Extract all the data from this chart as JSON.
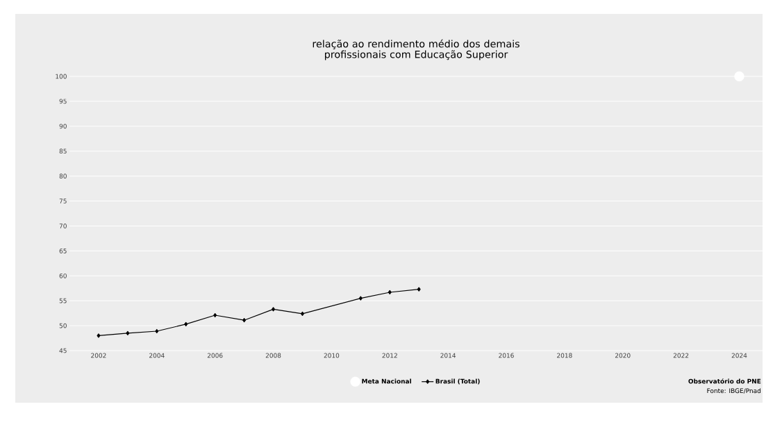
{
  "chart_data": {
    "type": "line",
    "title": "relação ao rendimento médio dos demais profissionais com Educação Superior",
    "series": [
      {
        "name": "Meta Nacional",
        "type": "scatter",
        "color": "#ffffff",
        "marker": "circle",
        "x": [
          2024
        ],
        "values": [
          100
        ]
      },
      {
        "name": "Brasil (Total)",
        "color": "#000000",
        "marker": "diamond",
        "x": [
          2002,
          2003,
          2004,
          2005,
          2006,
          2007,
          2008,
          2009,
          2011,
          2012,
          2013
        ],
        "values": [
          48.0,
          48.5,
          48.9,
          50.3,
          52.1,
          51.1,
          53.3,
          52.4,
          55.5,
          56.7,
          57.3
        ]
      }
    ],
    "xlim": [
      2001,
      2024.8
    ],
    "ylim": [
      45,
      100
    ],
    "xticks": [
      2002,
      2004,
      2006,
      2008,
      2010,
      2012,
      2014,
      2016,
      2018,
      2020,
      2022,
      2024
    ],
    "yticks": [
      45,
      50,
      55,
      60,
      65,
      70,
      75,
      80,
      85,
      90,
      95,
      100
    ],
    "grid": "y",
    "legend": "bottom",
    "annotations": [
      "**Observatório do PNE**",
      "Fonte: IBGE/Pnad"
    ]
  }
}
